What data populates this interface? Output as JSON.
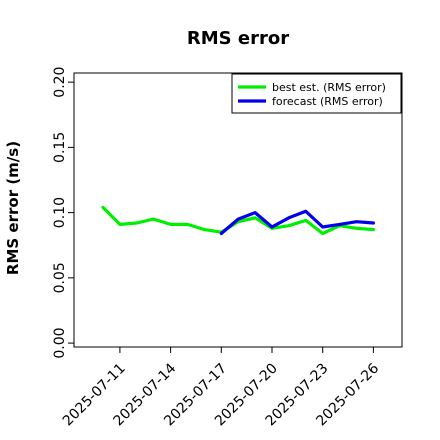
{
  "chart_data": {
    "type": "line",
    "title": "RMS error",
    "xlabel": "",
    "ylabel": "RMS error (m/s)",
    "x": [
      "2025-07-10",
      "2025-07-11",
      "2025-07-12",
      "2025-07-13",
      "2025-07-14",
      "2025-07-15",
      "2025-07-16",
      "2025-07-17",
      "2025-07-18",
      "2025-07-19",
      "2025-07-20",
      "2025-07-21",
      "2025-07-22",
      "2025-07-23",
      "2025-07-24",
      "2025-07-25",
      "2025-07-26"
    ],
    "xticks": [
      "2025-07-11",
      "2025-07-14",
      "2025-07-17",
      "2025-07-20",
      "2025-07-23",
      "2025-07-26"
    ],
    "highlight_tick": "2025-07-17",
    "highlight_color": "#228B22",
    "ylim": [
      -0.003,
      0.207
    ],
    "yticks": [
      0.0,
      0.05,
      0.1,
      0.15,
      0.2
    ],
    "ytick_labels": [
      "0.00",
      "0.05",
      "0.10",
      "0.15",
      "0.20"
    ],
    "grid": false,
    "legend_position": "top-right",
    "series": [
      {
        "name": "best est. (RMS error)",
        "color": "#00ee00",
        "values": [
          0.104,
          0.091,
          0.092,
          0.095,
          0.091,
          0.091,
          0.087,
          0.085,
          0.093,
          0.096,
          0.088,
          0.09,
          0.094,
          0.084,
          0.09,
          0.088,
          0.087
        ]
      },
      {
        "name": "forecast (RMS error)",
        "color": "#0000ee",
        "values": [
          null,
          null,
          null,
          null,
          null,
          null,
          null,
          0.084,
          0.095,
          0.1,
          0.089,
          0.096,
          0.101,
          0.089,
          0.091,
          0.093,
          0.092
        ]
      }
    ]
  }
}
